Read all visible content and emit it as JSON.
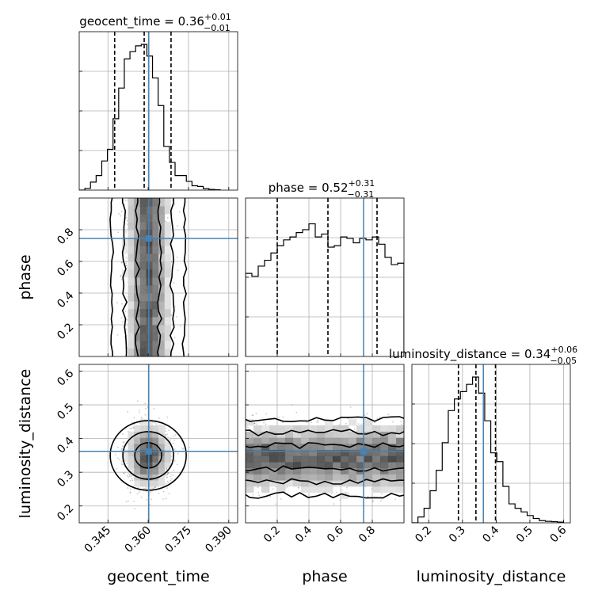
{
  "chart_data": {
    "type": "corner",
    "parameters": [
      "geocent_time",
      "phase",
      "luminosity_distance"
    ],
    "truth": {
      "geocent_time": 0.3602,
      "phase": 0.745,
      "luminosity_distance": 0.362,
      "color": "#4682b4"
    },
    "panels": {
      "geocent_time": {
        "title": {
          "prefix": "geocent_time = 0.36",
          "plus": "+0.01",
          "minus": "−0.01"
        },
        "quantiles": [
          0.3475,
          0.3585,
          0.3685
        ],
        "xlim": [
          0.3343,
          0.3933
        ],
        "bins": [
          [
            0.3343,
            0.0
          ],
          [
            0.3364,
            0.012
          ],
          [
            0.3385,
            0.055
          ],
          [
            0.3406,
            0.1
          ],
          [
            0.3427,
            0.2
          ],
          [
            0.3448,
            0.28
          ],
          [
            0.3469,
            0.49
          ],
          [
            0.349,
            0.7
          ],
          [
            0.3511,
            0.9
          ],
          [
            0.3532,
            0.95
          ],
          [
            0.3553,
            0.99
          ],
          [
            0.3574,
            1.0
          ],
          [
            0.3595,
            0.92
          ],
          [
            0.3616,
            0.77
          ],
          [
            0.3637,
            0.58
          ],
          [
            0.3658,
            0.3
          ],
          [
            0.3679,
            0.19
          ],
          [
            0.37,
            0.1
          ],
          [
            0.3721,
            0.1
          ],
          [
            0.3742,
            0.06
          ],
          [
            0.3763,
            0.03
          ],
          [
            0.3784,
            0.025
          ],
          [
            0.3805,
            0.01
          ],
          [
            0.3826,
            0.005
          ],
          [
            0.3847,
            0.002
          ]
        ]
      },
      "phase": {
        "title": {
          "prefix": "phase = 0.52",
          "plus": "+0.31",
          "minus": "−0.31"
        },
        "quantiles": [
          0.2,
          0.52,
          0.83
        ],
        "xlim": [
          0.0,
          1.0
        ],
        "bins": [
          [
            0.0,
            0.57
          ],
          [
            0.04,
            0.55
          ],
          [
            0.08,
            0.62
          ],
          [
            0.12,
            0.66
          ],
          [
            0.16,
            0.71
          ],
          [
            0.2,
            0.76
          ],
          [
            0.24,
            0.8
          ],
          [
            0.28,
            0.82
          ],
          [
            0.32,
            0.85
          ],
          [
            0.36,
            0.87
          ],
          [
            0.4,
            0.91
          ],
          [
            0.44,
            0.82
          ],
          [
            0.48,
            0.84
          ],
          [
            0.52,
            0.75
          ],
          [
            0.56,
            0.76
          ],
          [
            0.6,
            0.82
          ],
          [
            0.64,
            0.81
          ],
          [
            0.68,
            0.78
          ],
          [
            0.72,
            0.81
          ],
          [
            0.76,
            0.8
          ],
          [
            0.8,
            0.82
          ],
          [
            0.84,
            0.77
          ],
          [
            0.88,
            0.68
          ],
          [
            0.92,
            0.63
          ],
          [
            0.96,
            0.64
          ]
        ]
      },
      "luminosity_distance": {
        "title": {
          "prefix": "luminosity_distance = 0.34",
          "plus": "+0.06",
          "minus": "−0.05"
        },
        "quantiles": [
          0.288,
          0.34,
          0.398
        ],
        "xlim": [
          0.15,
          0.62
        ],
        "bins": [
          [
            0.15,
            0.0
          ],
          [
            0.168,
            0.04
          ],
          [
            0.186,
            0.1
          ],
          [
            0.204,
            0.22
          ],
          [
            0.222,
            0.36
          ],
          [
            0.24,
            0.55
          ],
          [
            0.258,
            0.77
          ],
          [
            0.276,
            0.85
          ],
          [
            0.294,
            0.9
          ],
          [
            0.312,
            0.95
          ],
          [
            0.33,
            1.0
          ],
          [
            0.348,
            0.89
          ],
          [
            0.366,
            0.7
          ],
          [
            0.384,
            0.48
          ],
          [
            0.402,
            0.42
          ],
          [
            0.42,
            0.25
          ],
          [
            0.438,
            0.13
          ],
          [
            0.456,
            0.1
          ],
          [
            0.474,
            0.075
          ],
          [
            0.492,
            0.05
          ],
          [
            0.51,
            0.03
          ],
          [
            0.528,
            0.015
          ],
          [
            0.546,
            0.01
          ],
          [
            0.564,
            0.008
          ],
          [
            0.582,
            0.005
          ]
        ]
      }
    },
    "axes": {
      "geocent_time": {
        "xlabel": "geocent_time",
        "ticks": [
          0.345,
          0.36,
          0.375,
          0.39
        ],
        "tick_labels": [
          "0.345",
          "0.360",
          "0.375",
          "0.390"
        ]
      },
      "phase": {
        "xlabel": "phase",
        "ylabel": "phase",
        "ylim": [
          0.0,
          1.0
        ],
        "ticks": [
          0.2,
          0.4,
          0.6,
          0.8
        ],
        "tick_labels": [
          "0.2",
          "0.4",
          "0.6",
          "0.8"
        ]
      },
      "luminosity_distance": {
        "xlabel": "luminosity_distance",
        "ylabel": "luminosity_distance",
        "ylim": [
          0.15,
          0.62
        ],
        "ticks": [
          0.2,
          0.3,
          0.4,
          0.5,
          0.6
        ],
        "tick_labels": [
          "0.2",
          "0.3",
          "0.4",
          "0.5",
          "0.6"
        ]
      }
    },
    "scatter_2d": {
      "phase_vs_geocent_time": {
        "center": [
          0.36,
          0.5
        ],
        "spread": [
          0.004,
          0.5
        ],
        "shape": "vertical band, uniform in phase"
      },
      "luminosity_distance_vs_geocent_time": {
        "center": [
          0.36,
          0.35
        ],
        "spread": [
          0.004,
          0.05
        ],
        "shape": "round blob"
      },
      "luminosity_distance_vs_phase": {
        "center": [
          0.5,
          0.345
        ],
        "spread": [
          0.5,
          0.05
        ],
        "shape": "horizontal band, uniform in phase"
      }
    },
    "grid": true
  }
}
